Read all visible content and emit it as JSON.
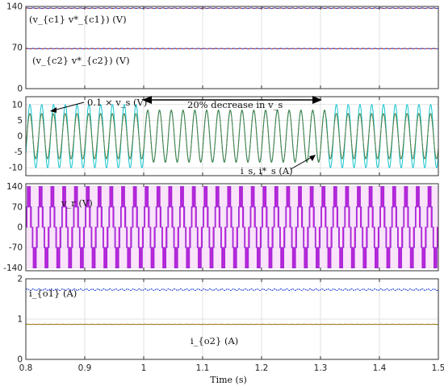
{
  "figure": {
    "x_axis_label": "Time (s)",
    "x_ticks": [
      "0.8",
      "0.9",
      "1",
      "1.1",
      "1.2",
      "1.3",
      "1.4",
      "1.5"
    ]
  },
  "chart_data": [
    {
      "type": "line",
      "panel": 1,
      "xlim": [
        0.8,
        1.5
      ],
      "ylim": [
        0,
        140
      ],
      "yticks": [
        "0",
        "70",
        "140"
      ],
      "grid": true,
      "annotations": [
        "(v_{c1} v*_{c1}) (V)",
        "(v_{c2} v*_{c2}) (V)"
      ],
      "series": [
        {
          "label": "v_{c1}",
          "value": 137,
          "ripple": 0.6,
          "color": "#1f3fd8"
        },
        {
          "label": "v*_{c1}",
          "value": 137,
          "ripple": 0,
          "color": "#c0392b"
        },
        {
          "label": "v_{c2}",
          "value": 68,
          "ripple": 0.4,
          "color": "#1f3fd8"
        },
        {
          "label": "v*_{c2}",
          "value": 68,
          "ripple": 0,
          "color": "#c0392b"
        }
      ]
    },
    {
      "type": "line",
      "panel": 2,
      "xlim": [
        0.8,
        1.5
      ],
      "ylim": [
        -12.5,
        12.5
      ],
      "yticks": [
        "10",
        "5",
        "0",
        "-5",
        "-10"
      ],
      "grid": true,
      "frequency_hz": 50,
      "annotations": [
        "0.1 × v_s (V)",
        "20% decrease in v_s",
        "i_s, i*_s (A)"
      ],
      "sag_interval": [
        1.0,
        1.31
      ],
      "series": [
        {
          "label": "0.1 × v_s",
          "amplitude": 10,
          "amplitude_during_sag": 8,
          "color": "#13c4cf"
        },
        {
          "label": "i_s",
          "amplitude": 7.2,
          "amplitude_during_sag": 8.3,
          "color": "#2a8a52"
        },
        {
          "label": "i*_s",
          "amplitude": 7.0,
          "amplitude_during_sag": 8.1,
          "color": "#7a6f30"
        }
      ]
    },
    {
      "type": "line",
      "panel": 3,
      "xlim": [
        0.8,
        1.5
      ],
      "ylim": [
        -150,
        150
      ],
      "yticks": [
        "140",
        "70",
        "0",
        "-70",
        "-140"
      ],
      "grid": true,
      "frequency_hz": 50,
      "annotations": [
        "v_r (V)"
      ],
      "series": [
        {
          "label": "v_r",
          "levels": [
            140,
            70,
            0,
            -70,
            -140
          ],
          "color": "#cc20d8"
        }
      ]
    },
    {
      "type": "line",
      "panel": 4,
      "xlim": [
        0.8,
        1.5
      ],
      "ylim": [
        0,
        2
      ],
      "yticks": [
        "2",
        "1",
        "0"
      ],
      "grid": true,
      "annotations": [
        "i_{o1} (A)",
        "i_{o2} (A)"
      ],
      "series": [
        {
          "label": "i_{o1}",
          "value": 1.73,
          "ripple": 0.02,
          "color": "#1f3fd8"
        },
        {
          "label": "i_{o2}",
          "value": 0.87,
          "ripple": 0.003,
          "color": "#a07a1a"
        }
      ]
    }
  ]
}
